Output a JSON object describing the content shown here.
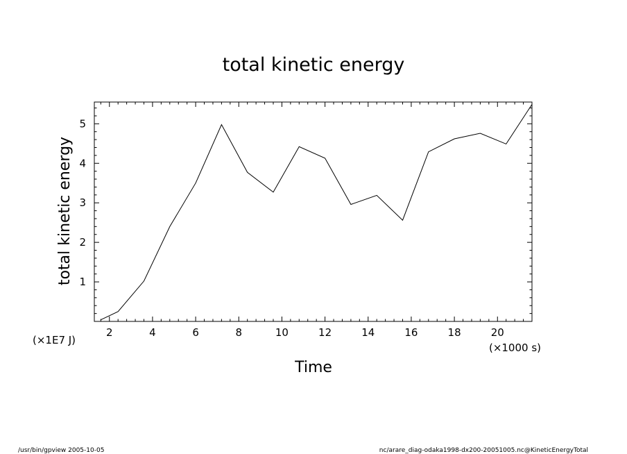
{
  "chart_data": {
    "type": "line",
    "title": "total kinetic energy",
    "xlabel": "Time",
    "ylabel": "total kinetic energy",
    "x_unit": "(×1000 s)",
    "y_unit": "(×1E7 J)",
    "xlim": [
      1.3,
      21.6
    ],
    "ylim": [
      0,
      5.55
    ],
    "x_ticks": [
      2,
      4,
      6,
      8,
      10,
      12,
      14,
      16,
      18,
      20
    ],
    "y_ticks": [
      1,
      2,
      3,
      4,
      5
    ],
    "x_minor_step": 0.4,
    "y_minor_step": 0.2,
    "grid": false,
    "line_color": "#000000",
    "series": [
      {
        "x": [
          1.6,
          2.4,
          3.6,
          4.8,
          6.0,
          7.2,
          8.4,
          9.6,
          10.8,
          12.0,
          13.2,
          14.4,
          15.6,
          16.8,
          18.0,
          19.2,
          20.4,
          21.6
        ],
        "values": [
          0.04,
          0.25,
          1.02,
          2.4,
          3.5,
          4.98,
          3.77,
          3.27,
          4.42,
          4.13,
          2.96,
          3.19,
          2.56,
          4.29,
          4.62,
          4.76,
          4.49,
          5.49
        ]
      }
    ]
  },
  "footer": {
    "left": "/usr/bin/gpview   2005-10-05",
    "right": "nc/arare_diag-odaka1998-dx200-20051005.nc@KineticEnergyTotal"
  }
}
